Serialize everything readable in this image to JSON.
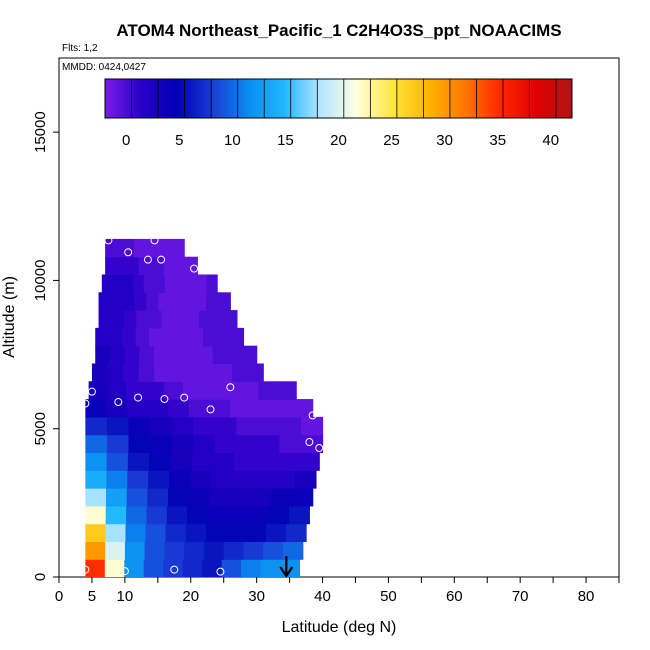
{
  "chart_data": {
    "type": "heatmap",
    "title": "ATOM4 Northeast_Pacific_1 C2H4O3S_ppt_NOAACIMS",
    "flights_note": "Flts: 1,2",
    "date_note": "MMDD: 0424,0427",
    "xlabel": "Latitude (deg N)",
    "ylabel": "Altitude (m)",
    "xlim": [
      0,
      85
    ],
    "ylim": [
      0,
      17500
    ],
    "x_ticks": [
      0,
      5,
      10,
      20,
      30,
      40,
      50,
      60,
      70,
      80
    ],
    "y_ticks": [
      0,
      5000,
      10000,
      15000
    ],
    "colorbar": {
      "range": [
        -2,
        42
      ],
      "ticks": [
        0,
        5,
        10,
        15,
        20,
        25,
        30,
        35,
        40
      ],
      "colors": [
        "#7a1ee8",
        "#2a00c8",
        "#0000b4",
        "#1a3cd6",
        "#0a8cf0",
        "#20b8ff",
        "#b4e6ff",
        "#ffffe0",
        "#ffe640",
        "#ffb400",
        "#ff7800",
        "#ff2800",
        "#e00000",
        "#b41414"
      ]
    },
    "series": [
      {
        "name": "",
        "gridded_profile": [
          {
            "lat_range": [
              4,
              36.5
            ],
            "alt_range": [
              0,
              600
            ],
            "values": [
              35,
              22,
              12,
              9,
              8,
              7,
              6,
              9,
              11,
              12,
              12
            ]
          },
          {
            "lat_range": [
              4,
              37
            ],
            "alt_range": [
              600,
              1200
            ],
            "values": [
              30,
              20,
              12,
              9,
              8,
              7,
              6,
              7,
              8,
              9,
              10
            ]
          },
          {
            "lat_range": [
              4,
              37.5
            ],
            "alt_range": [
              1200,
              1800
            ],
            "values": [
              27,
              18,
              11,
              9,
              7,
              6,
              5,
              5,
              5,
              6,
              7
            ]
          },
          {
            "lat_range": [
              4,
              38
            ],
            "alt_range": [
              1800,
              2400
            ],
            "values": [
              22,
              15,
              10,
              8,
              6,
              5,
              4,
              4,
              4,
              5,
              6
            ]
          },
          {
            "lat_range": [
              4,
              38.5
            ],
            "alt_range": [
              2400,
              3000
            ],
            "values": [
              18,
              13,
              9,
              7,
              5,
              4,
              3,
              3,
              3,
              4,
              4
            ]
          },
          {
            "lat_range": [
              4,
              39
            ],
            "alt_range": [
              3000,
              3600
            ],
            "values": [
              14,
              11,
              8,
              6,
              4,
              3,
              2,
              2,
              2,
              2,
              3
            ]
          },
          {
            "lat_range": [
              4,
              39.5
            ],
            "alt_range": [
              3600,
              4200
            ],
            "values": [
              12,
              9,
              6,
              5,
              3,
              2,
              2,
              1,
              1,
              1,
              1
            ]
          },
          {
            "lat_range": [
              4,
              40
            ],
            "alt_range": [
              4200,
              4800
            ],
            "values": [
              10,
              8,
              5,
              4,
              3,
              2,
              1,
              1,
              1,
              0,
              0
            ]
          },
          {
            "lat_range": [
              4,
              40
            ],
            "alt_range": [
              4800,
              5400
            ],
            "values": [
              7,
              6,
              4,
              3,
              2,
              1,
              1,
              0,
              0,
              0,
              -1
            ]
          },
          {
            "lat_range": [
              4,
              38.5
            ],
            "alt_range": [
              5400,
              6000
            ],
            "values": [
              4,
              3,
              2,
              2,
              1,
              0,
              0,
              -1,
              -1,
              -1,
              -1
            ]
          },
          {
            "lat_range": [
              4.5,
              36
            ],
            "alt_range": [
              6000,
              6600
            ],
            "values": [
              3,
              2,
              1,
              1,
              0,
              -1,
              -1,
              -1,
              -1,
              0,
              0
            ]
          },
          {
            "lat_range": [
              5,
              31
            ],
            "alt_range": [
              6600,
              7200
            ],
            "values": [
              3,
              2,
              1,
              0,
              -1,
              -1,
              -1,
              -1,
              -1,
              0,
              0
            ]
          },
          {
            "lat_range": [
              5.5,
              30
            ],
            "alt_range": [
              7200,
              7800
            ],
            "values": [
              3,
              2,
              1,
              0,
              -1,
              -1,
              -1,
              -1,
              0,
              0,
              0
            ]
          },
          {
            "lat_range": [
              5.5,
              28
            ],
            "alt_range": [
              7800,
              8400
            ],
            "values": [
              2,
              2,
              1,
              0,
              -1,
              -1,
              -1,
              -1,
              0,
              0,
              0
            ]
          },
          {
            "lat_range": [
              6,
              27
            ],
            "alt_range": [
              8400,
              9000
            ],
            "values": [
              2,
              2,
              1,
              0,
              0,
              -1,
              -1,
              -1,
              0,
              0,
              0
            ]
          },
          {
            "lat_range": [
              6,
              26
            ],
            "alt_range": [
              9000,
              9600
            ],
            "values": [
              2,
              2,
              2,
              1,
              0,
              -1,
              -1,
              -1,
              -1,
              0,
              0
            ]
          },
          {
            "lat_range": [
              6.5,
              24
            ],
            "alt_range": [
              9600,
              10200
            ],
            "values": [
              2,
              2,
              2,
              1,
              0,
              0,
              -1,
              -1,
              -1,
              -1,
              0
            ]
          },
          {
            "lat_range": [
              7,
              21
            ],
            "alt_range": [
              10200,
              10800
            ],
            "values": [
              1,
              1,
              1,
              1,
              0,
              0,
              0,
              -1,
              -1,
              -1,
              -1
            ]
          },
          {
            "lat_range": [
              7,
              19
            ],
            "alt_range": [
              10800,
              11400
            ],
            "values": [
              0,
              0,
              0,
              0,
              -1,
              -1,
              -1,
              -1,
              -1,
              -1,
              -1
            ]
          }
        ],
        "observations": [
          {
            "lat": 4,
            "alt": 250
          },
          {
            "lat": 10,
            "alt": 200
          },
          {
            "lat": 17.5,
            "alt": 250
          },
          {
            "lat": 24.5,
            "alt": 180
          },
          {
            "lat": 37.5,
            "alt": 350
          },
          {
            "lat": 38,
            "alt": 4550
          },
          {
            "lat": 39.5,
            "alt": 4350
          },
          {
            "lat": 38.5,
            "alt": 5450
          },
          {
            "lat": 4,
            "alt": 5850
          },
          {
            "lat": 5,
            "alt": 6250
          },
          {
            "lat": 9,
            "alt": 5900
          },
          {
            "lat": 12,
            "alt": 6050
          },
          {
            "lat": 16,
            "alt": 6000
          },
          {
            "lat": 19,
            "alt": 6050
          },
          {
            "lat": 23,
            "alt": 5650
          },
          {
            "lat": 26,
            "alt": 6400
          },
          {
            "lat": 7.5,
            "alt": 11350
          },
          {
            "lat": 10.5,
            "alt": 10950
          },
          {
            "lat": 13.5,
            "alt": 10700
          },
          {
            "lat": 14.5,
            "alt": 11350
          },
          {
            "lat": 15.5,
            "alt": 10700
          },
          {
            "lat": 20.5,
            "alt": 10400
          }
        ],
        "marker_arrow": {
          "lat": 34.5,
          "alt_from": 700,
          "alt_to": 0
        }
      }
    ]
  }
}
